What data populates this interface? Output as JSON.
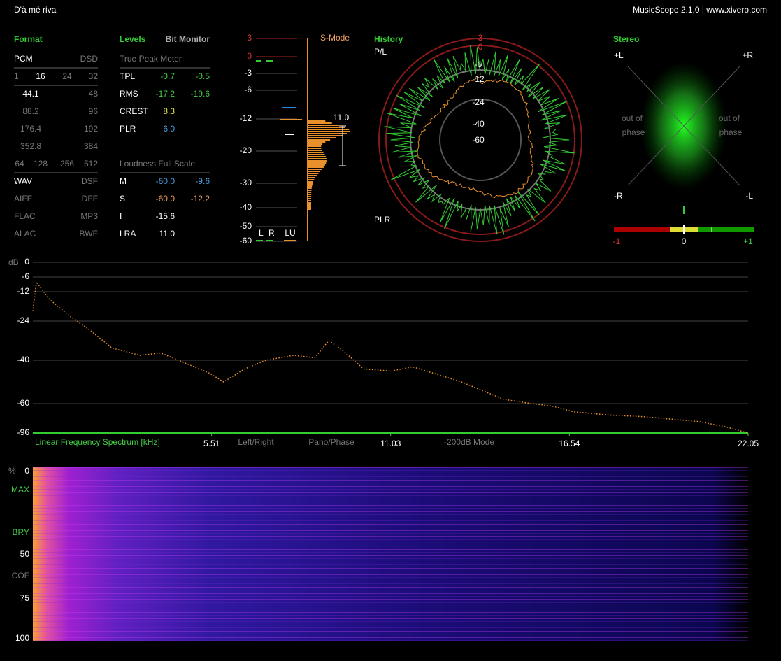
{
  "header": {
    "title": "D'à mé riva",
    "app": "MusicScope 2.1.0 | www.xivero.com"
  },
  "format": {
    "title": "Format",
    "rows": [
      [
        "PCM",
        "DSD"
      ],
      [
        "1",
        "16",
        "24",
        "32"
      ],
      [
        "44.1",
        "48"
      ],
      [
        "88.2",
        "96"
      ],
      [
        "176.4",
        "192"
      ],
      [
        "352.8",
        "384"
      ],
      [
        "64",
        "128",
        "256",
        "512"
      ],
      [
        "WAV",
        "DSF"
      ],
      [
        "AIFF",
        "DFF"
      ],
      [
        "FLAC",
        "MP3"
      ],
      [
        "ALAC",
        "BWF"
      ]
    ]
  },
  "levels": {
    "title": "Levels",
    "bit_monitor": "Bit Monitor",
    "true_peak": {
      "title": "True Peak Meter",
      "rows": [
        [
          "TPL",
          "-0.7",
          "-0.5"
        ],
        [
          "RMS",
          "-17.2",
          "-19.6"
        ],
        [
          "CREST",
          "8.3"
        ],
        [
          "PLR",
          "6.0"
        ]
      ]
    },
    "loudness": {
      "title": "Loudness Full Scale",
      "rows": [
        [
          "M",
          "-60.0",
          "-9.6"
        ],
        [
          "S",
          "-60.0",
          "-12.2"
        ],
        [
          "I",
          "-15.6"
        ],
        [
          "LRA",
          "11.0"
        ]
      ]
    }
  },
  "meter": {
    "scale": [
      "3",
      "0",
      "-3",
      "-6",
      "-12",
      "-20",
      "-30",
      "-40",
      "-50",
      "-60"
    ],
    "mode": "S-Mode",
    "range": "11.0",
    "channels": [
      "L",
      "R",
      "LU"
    ]
  },
  "history": {
    "title": "History",
    "top": "P/L",
    "bottom": "PLR",
    "rings": [
      "3",
      "0",
      "-6",
      "-12",
      "-24",
      "-40",
      "-60"
    ]
  },
  "stereo": {
    "title": "Stereo",
    "corners": [
      "+L",
      "+R",
      "-R",
      "-L"
    ],
    "phase_left": [
      "out of",
      "phase"
    ],
    "phase_right": [
      "out of",
      "phase"
    ],
    "correlation": [
      "-1",
      "0",
      "+1"
    ]
  },
  "spectrum": {
    "unit": "dB",
    "yticks": [
      0,
      -6,
      -12,
      -24,
      -40,
      -60,
      -96
    ],
    "xlabel": "Linear Frequency Spectrum [kHz]",
    "xlim": [
      0,
      22.05
    ],
    "xticks": [
      5.51,
      11.03,
      16.54,
      22.05
    ],
    "modes": [
      "Left/Right",
      "Pano/Phase",
      "-200dB Mode"
    ],
    "x": [
      0,
      0.11,
      0.5,
      1.14,
      1.79,
      2.44,
      3.3,
      3.94,
      4.81,
      5.45,
      5.88,
      6.53,
      7.18,
      8.04,
      8.69,
      9.12,
      9.55,
      10.2,
      11.06,
      11.7,
      12.57,
      13.21,
      13.86,
      14.51,
      15.37,
      16.01,
      16.66,
      17.74,
      18.82,
      19.68,
      20.54,
      21.41,
      22.05
    ],
    "values": [
      -20,
      -8,
      -15,
      -22,
      -28,
      -35,
      -38,
      -37,
      -42,
      -46,
      -50,
      -44,
      -40,
      -38,
      -39,
      -32,
      -36,
      -44,
      -45,
      -43,
      -47,
      -50,
      -54,
      -58,
      -60,
      -63,
      -70,
      -74,
      -76,
      -79,
      -82,
      -89,
      -96
    ]
  },
  "spectrogram": {
    "unit": "%",
    "labels": [
      "0",
      "MAX",
      "BRY",
      "50",
      "COF",
      "75",
      "100"
    ]
  }
}
